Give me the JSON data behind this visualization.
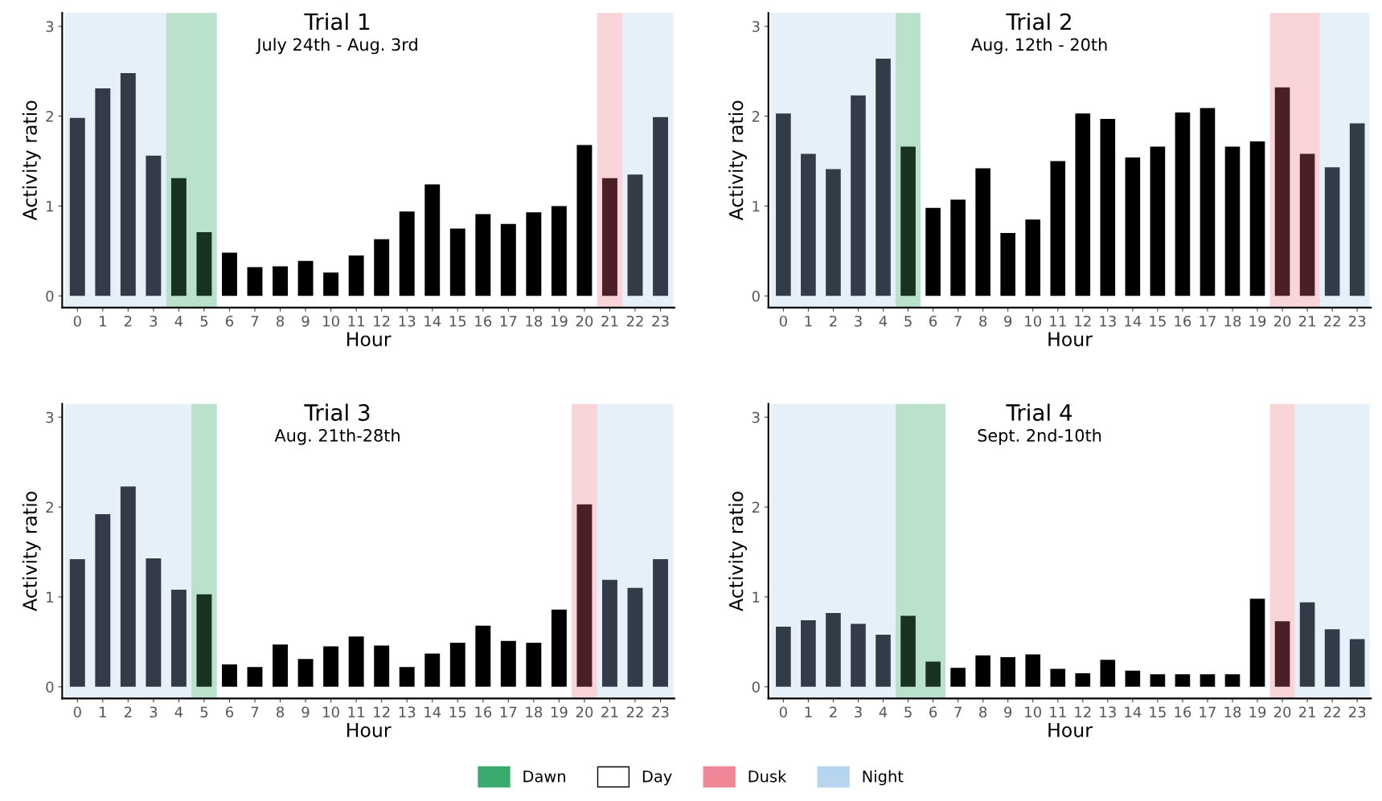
{
  "chart_data": [
    {
      "type": "bar",
      "title": "Trial 1",
      "subtitle": "July 24th - Aug. 3rd",
      "xlabel": "Hour",
      "ylabel": "Activity ratio",
      "categories": [
        "0",
        "1",
        "2",
        "3",
        "4",
        "5",
        "6",
        "7",
        "8",
        "9",
        "10",
        "11",
        "12",
        "13",
        "14",
        "15",
        "16",
        "17",
        "18",
        "19",
        "20",
        "21",
        "22",
        "23"
      ],
      "values": [
        1.98,
        2.31,
        2.48,
        1.56,
        1.31,
        0.71,
        0.48,
        0.32,
        0.33,
        0.39,
        0.26,
        0.45,
        0.63,
        0.94,
        1.24,
        0.75,
        0.91,
        0.8,
        0.93,
        1.0,
        1.68,
        1.31,
        1.35,
        1.99
      ],
      "colors": [
        "#333a48",
        "#333a48",
        "#333a48",
        "#333a48",
        "#17331f",
        "#17331f",
        "#000000",
        "#000000",
        "#000000",
        "#000000",
        "#000000",
        "#000000",
        "#000000",
        "#000000",
        "#000000",
        "#000000",
        "#000000",
        "#000000",
        "#000000",
        "#000000",
        "#000000",
        "#4a1f27",
        "#333a48",
        "#333a48"
      ],
      "bands": [
        {
          "axis": "x",
          "from": "4",
          "to": "5",
          "label": "Dawn",
          "color": "#3aaa6e"
        },
        {
          "axis": "x",
          "from": "21",
          "to": "21",
          "label": "Dusk",
          "color": "#ef8796"
        },
        {
          "axis": "x",
          "from": "0",
          "to": "3",
          "label": "Night",
          "color": "#b6d5ee"
        },
        {
          "axis": "x",
          "from": "22",
          "to": "23",
          "color": "#b6d5ee"
        }
      ],
      "ylim": [
        -0.13,
        3.15
      ],
      "yticks": [
        0,
        1,
        2,
        3
      ],
      "grid": false,
      "legend": "bottom",
      "annotations": [
        "Day"
      ]
    },
    {
      "type": "bar",
      "title": "Trial 2",
      "subtitle": "Aug. 12th - 20th",
      "xlabel": "Hour",
      "ylabel": "Activity ratio",
      "categories": [
        "0",
        "1",
        "2",
        "3",
        "4",
        "5",
        "6",
        "7",
        "8",
        "9",
        "10",
        "11",
        "12",
        "13",
        "14",
        "15",
        "16",
        "17",
        "18",
        "19",
        "20",
        "21",
        "22",
        "23"
      ],
      "values": [
        2.03,
        1.58,
        1.41,
        2.23,
        2.64,
        1.66,
        0.98,
        1.07,
        1.42,
        0.7,
        0.85,
        1.5,
        2.03,
        1.97,
        1.54,
        1.66,
        2.04,
        2.09,
        1.66,
        1.72,
        2.32,
        1.58,
        1.43,
        1.92
      ],
      "colors": [
        "#333a48",
        "#333a48",
        "#333a48",
        "#333a48",
        "#333a48",
        "#17331f",
        "#000000",
        "#000000",
        "#000000",
        "#000000",
        "#000000",
        "#000000",
        "#000000",
        "#000000",
        "#000000",
        "#000000",
        "#000000",
        "#000000",
        "#000000",
        "#000000",
        "#4a1f27",
        "#4a1f27",
        "#333a48",
        "#333a48"
      ],
      "bands": [
        {
          "axis": "x",
          "from": "0",
          "to": "4",
          "color": "#b6d5ee"
        },
        {
          "axis": "x",
          "from": "5",
          "to": "5",
          "color": "#3aaa6e"
        },
        {
          "axis": "x",
          "from": "20",
          "to": "21",
          "color": "#ef8796"
        },
        {
          "axis": "x",
          "from": "22",
          "to": "23",
          "color": "#b6d5ee"
        }
      ],
      "ylim": [
        -0.13,
        3.15
      ],
      "yticks": [
        0,
        1,
        2,
        3
      ],
      "grid": false
    },
    {
      "type": "bar",
      "title": "Trial 3",
      "subtitle": "Aug. 21th-28th",
      "xlabel": "Hour",
      "ylabel": "Activity ratio",
      "categories": [
        "0",
        "1",
        "2",
        "3",
        "4",
        "5",
        "6",
        "7",
        "8",
        "9",
        "10",
        "11",
        "12",
        "13",
        "14",
        "15",
        "16",
        "17",
        "18",
        "19",
        "20",
        "21",
        "22",
        "23"
      ],
      "values": [
        1.42,
        1.92,
        2.23,
        1.43,
        1.08,
        1.03,
        0.25,
        0.22,
        0.47,
        0.31,
        0.45,
        0.56,
        0.46,
        0.22,
        0.37,
        0.49,
        0.68,
        0.51,
        0.49,
        0.86,
        2.03,
        1.19,
        1.1,
        1.42
      ],
      "colors": [
        "#333a48",
        "#333a48",
        "#333a48",
        "#333a48",
        "#333a48",
        "#17331f",
        "#000000",
        "#000000",
        "#000000",
        "#000000",
        "#000000",
        "#000000",
        "#000000",
        "#000000",
        "#000000",
        "#000000",
        "#000000",
        "#000000",
        "#000000",
        "#000000",
        "#4a1f27",
        "#333a48",
        "#333a48",
        "#333a48"
      ],
      "bands": [
        {
          "axis": "x",
          "from": "0",
          "to": "4",
          "color": "#b6d5ee"
        },
        {
          "axis": "x",
          "from": "5",
          "to": "5",
          "color": "#3aaa6e"
        },
        {
          "axis": "x",
          "from": "20",
          "to": "20",
          "color": "#ef8796"
        },
        {
          "axis": "x",
          "from": "21",
          "to": "23",
          "color": "#b6d5ee"
        }
      ],
      "ylim": [
        -0.13,
        3.15
      ],
      "yticks": [
        0,
        1,
        2,
        3
      ],
      "grid": false
    },
    {
      "type": "bar",
      "title": "Trial 4",
      "subtitle": "Sept. 2nd-10th",
      "xlabel": "Hour",
      "ylabel": "Activity ratio",
      "categories": [
        "0",
        "1",
        "2",
        "3",
        "4",
        "5",
        "6",
        "7",
        "8",
        "9",
        "10",
        "11",
        "12",
        "13",
        "14",
        "15",
        "16",
        "17",
        "18",
        "19",
        "20",
        "21",
        "22",
        "23"
      ],
      "values": [
        0.67,
        0.74,
        0.82,
        0.7,
        0.58,
        0.79,
        0.28,
        0.21,
        0.35,
        0.33,
        0.36,
        0.2,
        0.15,
        0.3,
        0.18,
        0.14,
        0.14,
        0.14,
        0.14,
        0.98,
        0.73,
        0.94,
        0.64,
        0.53
      ],
      "colors": [
        "#333a48",
        "#333a48",
        "#333a48",
        "#333a48",
        "#333a48",
        "#17331f",
        "#17331f",
        "#000000",
        "#000000",
        "#000000",
        "#000000",
        "#000000",
        "#000000",
        "#000000",
        "#000000",
        "#000000",
        "#000000",
        "#000000",
        "#000000",
        "#000000",
        "#4a1f27",
        "#333a48",
        "#333a48",
        "#333a48"
      ],
      "bands": [
        {
          "axis": "x",
          "from": "0",
          "to": "4",
          "color": "#b6d5ee"
        },
        {
          "axis": "x",
          "from": "5",
          "to": "6",
          "color": "#3aaa6e"
        },
        {
          "axis": "x",
          "from": "20",
          "to": "20",
          "color": "#ef8796"
        },
        {
          "axis": "x",
          "from": "21",
          "to": "23",
          "color": "#b6d5ee"
        }
      ],
      "ylim": [
        -0.13,
        3.15
      ],
      "yticks": [
        0,
        1,
        2,
        3
      ],
      "grid": false
    }
  ]
}
